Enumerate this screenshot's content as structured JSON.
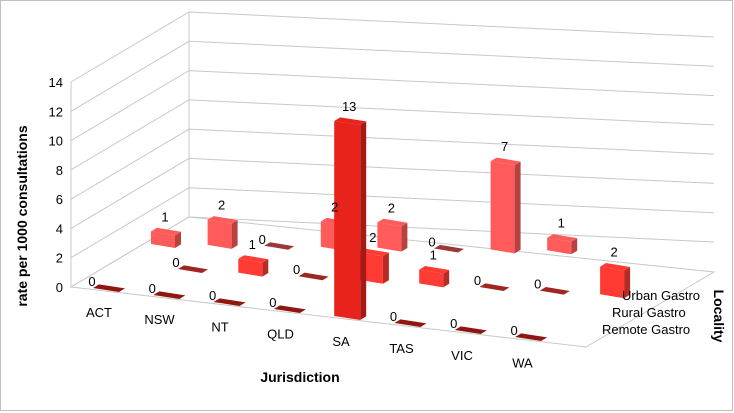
{
  "chart_data": {
    "type": "bar",
    "subtype": "3d-column",
    "title": "",
    "xlabel": "Jurisdiction",
    "ylabel": "rate per 1000 consultations",
    "zlabel": "Locality",
    "ylim": [
      0,
      14
    ],
    "yticks": [
      0,
      2,
      4,
      6,
      8,
      10,
      12,
      14
    ],
    "grid": true,
    "categories": [
      "ACT",
      "NSW",
      "NT",
      "QLD",
      "SA",
      "TAS",
      "VIC",
      "WA"
    ],
    "series": [
      {
        "name": "Remote Gastro",
        "color": "#e8231c",
        "values": [
          0,
          0,
          0,
          0,
          13,
          0,
          0,
          0
        ]
      },
      {
        "name": "Rural Gastro",
        "color": "#ff3b33",
        "values": [
          0,
          1,
          0,
          2,
          1,
          0,
          0,
          2
        ]
      },
      {
        "name": "Urban Gastro",
        "color": "#ff5b5b",
        "values": [
          1,
          2,
          0,
          2,
          2,
          0,
          7,
          1
        ]
      }
    ]
  }
}
